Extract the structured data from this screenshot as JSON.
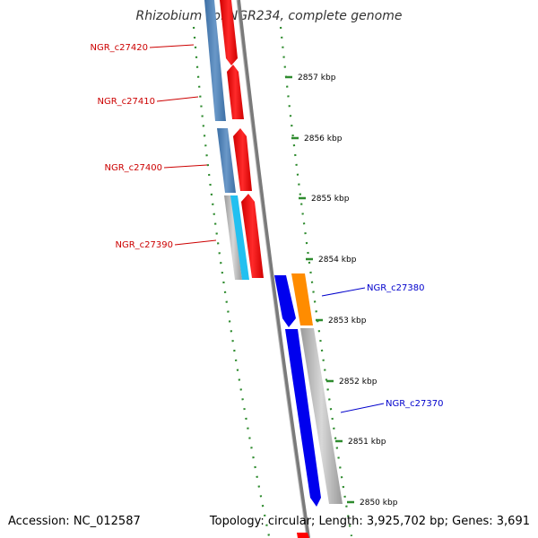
{
  "title": "Rhizobium sp. NGR234, complete genome",
  "footer": {
    "accession": "Accession: NC_012587",
    "stats": "Topology: circular; Length: 3,925,702 bp; Genes: 3,691"
  },
  "colors": {
    "tick": "#2e8b2e",
    "label_left": "#cc0000",
    "label_right": "#0000cc",
    "backbone": "#808080",
    "reverse_gene": "#4a7fb5",
    "forward_gene": "#ff0000",
    "forward_blue": "#0000ee",
    "orange": "#ff8c00",
    "grey": "#bbbbbb",
    "cyan": "#22c0f0"
  },
  "scale": {
    "ticks": [
      {
        "label": "2857 kbp"
      },
      {
        "label": "2856 kbp"
      },
      {
        "label": "2855 kbp"
      },
      {
        "label": "2854 kbp"
      },
      {
        "label": "2853 kbp"
      },
      {
        "label": "2852 kbp"
      },
      {
        "label": "2851 kbp"
      },
      {
        "label": "2850 kbp"
      }
    ]
  },
  "genes": [
    {
      "locus": "NGR_c27420"
    },
    {
      "locus": "NGR_c27410"
    },
    {
      "locus": "NGR_c27400"
    },
    {
      "locus": "NGR_c27390"
    },
    {
      "locus": "NGR_c27380"
    },
    {
      "locus": "NGR_c27370"
    }
  ]
}
